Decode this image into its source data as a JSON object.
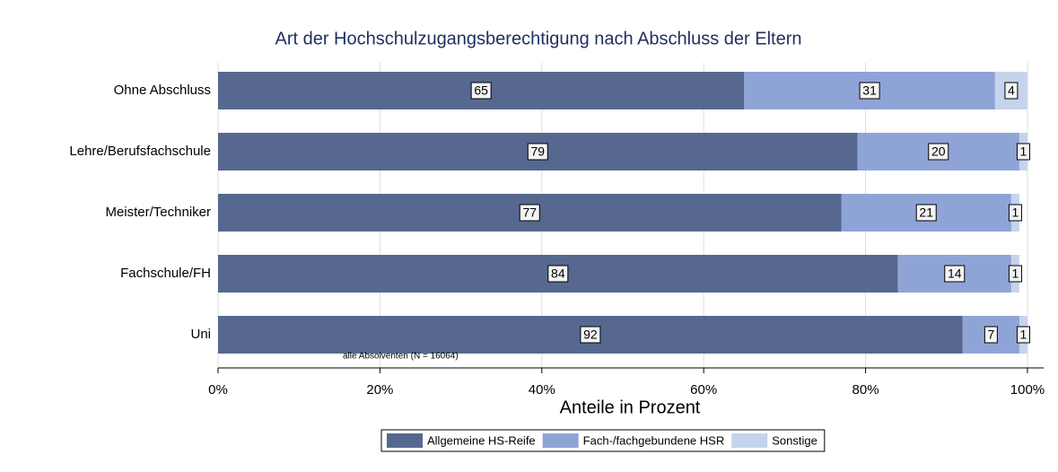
{
  "chart_data": {
    "type": "stacked-barh",
    "title": "Art der Hochschulzugangsberechtigung nach Abschluss der Eltern",
    "xlabel": "Anteile in Prozent",
    "annotation": "alle Absolventen (N = 16064)",
    "categories": [
      "Ohne Abschluss",
      "Lehre/Berufsfachschule",
      "Meister/Techniker",
      "Fachschule/FH",
      "Uni"
    ],
    "series": [
      {
        "name": "Allgemeine HS-Reife",
        "color": "#56688f",
        "values": [
          65,
          79,
          77,
          84,
          92
        ]
      },
      {
        "name": "Fach-/fachgebundene HSR",
        "color": "#8fa4d6",
        "values": [
          31,
          20,
          21,
          14,
          7
        ]
      },
      {
        "name": "Sonstige",
        "color": "#c6d3ec",
        "values": [
          4,
          1,
          1,
          1,
          1
        ]
      }
    ],
    "xlim": [
      0,
      102
    ],
    "xticks": [
      {
        "value": 0,
        "label": "0%"
      },
      {
        "value": 20,
        "label": "20%"
      },
      {
        "value": 40,
        "label": "40%"
      },
      {
        "value": 60,
        "label": "60%"
      },
      {
        "value": 80,
        "label": "80%"
      },
      {
        "value": 100,
        "label": "100%"
      }
    ],
    "grid": true,
    "legend": "bottom"
  }
}
